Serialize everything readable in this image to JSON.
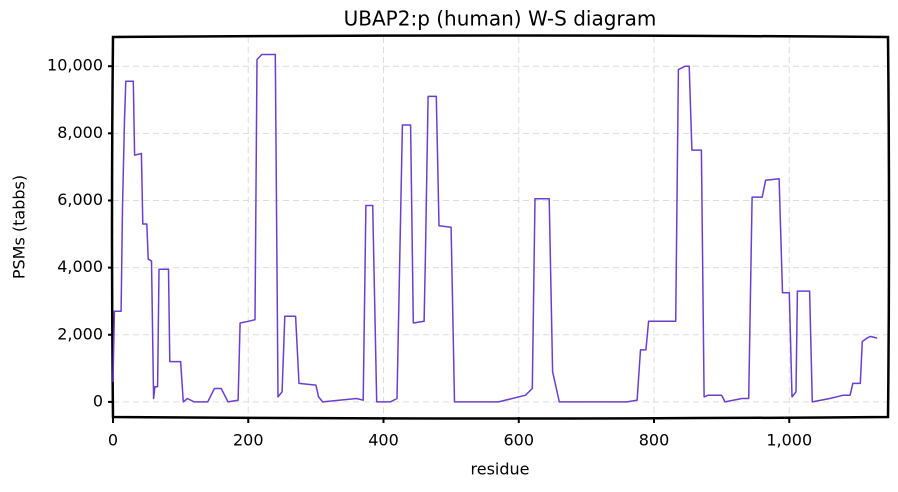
{
  "chart_data": {
    "type": "line",
    "title": "UBAP2:p (human) W-S diagram",
    "xlabel": "residue",
    "ylabel": "PSMs (tabbs)",
    "color": "#6a3fcf",
    "grid": true,
    "xlim": [
      0,
      1146
    ],
    "ylim": [
      -450,
      10870
    ],
    "xticks": [
      0,
      200,
      400,
      600,
      800,
      {
        "value": 1000,
        "label": "1,000"
      }
    ],
    "yticks": [
      0,
      {
        "value": 2000,
        "label": "2,000"
      },
      {
        "value": 4000,
        "label": "4,000"
      },
      {
        "value": 6000,
        "label": "6,000"
      },
      {
        "value": 8000,
        "label": "8,000"
      },
      {
        "value": 10000,
        "label": "10,000"
      }
    ],
    "x": [
      0,
      2,
      12,
      14,
      17,
      19,
      30,
      32,
      42,
      44,
      50,
      52,
      57,
      60,
      62,
      66,
      68,
      82,
      84,
      100,
      104,
      110,
      120,
      140,
      150,
      160,
      165,
      170,
      185,
      188,
      200,
      210,
      213,
      220,
      240,
      244,
      250,
      254,
      270,
      275,
      300,
      304,
      310,
      360,
      370,
      374,
      384,
      390,
      410,
      420,
      428,
      440,
      444,
      460,
      462,
      466,
      478,
      482,
      500,
      505,
      515,
      570,
      610,
      620,
      624,
      645,
      650,
      660,
      700,
      760,
      775,
      780,
      788,
      792,
      820,
      832,
      836,
      846,
      852,
      856,
      870,
      874,
      880,
      900,
      905,
      930,
      940,
      945,
      960,
      965,
      985,
      990,
      1000,
      1004,
      1010,
      1012,
      1030,
      1034,
      1060,
      1080,
      1090,
      1094,
      1105,
      1108,
      1115,
      1120,
      1130
    ],
    "values": [
      600,
      2700,
      2700,
      5800,
      8400,
      9550,
      9550,
      7350,
      7400,
      5300,
      5300,
      4250,
      4200,
      100,
      450,
      450,
      3950,
      3950,
      1200,
      1200,
      0,
      100,
      0,
      0,
      400,
      400,
      200,
      0,
      50,
      2350,
      2400,
      2450,
      10200,
      10350,
      10350,
      150,
      300,
      2550,
      2550,
      550,
      500,
      150,
      0,
      100,
      50,
      5850,
      5850,
      0,
      0,
      100,
      8250,
      8250,
      2350,
      2400,
      4300,
      9100,
      9100,
      5250,
      5200,
      0,
      0,
      0,
      200,
      400,
      6050,
      6050,
      900,
      0,
      0,
      0,
      50,
      1550,
      1550,
      2400,
      2400,
      2400,
      9900,
      10000,
      10000,
      7500,
      7500,
      150,
      200,
      200,
      0,
      100,
      100,
      6100,
      6100,
      6600,
      6650,
      3250,
      3250,
      150,
      300,
      3300,
      3300,
      0,
      100,
      200,
      200,
      550,
      550,
      1800,
      1900,
      1950,
      1900
    ]
  }
}
